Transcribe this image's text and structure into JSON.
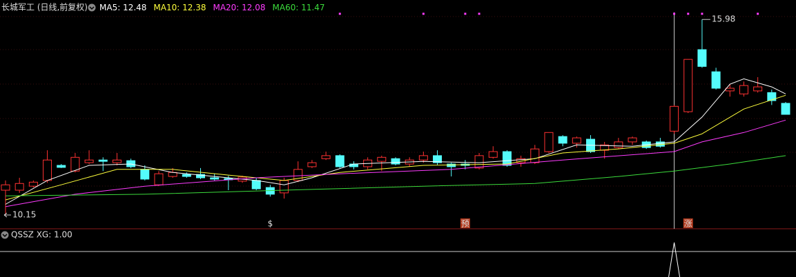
{
  "chart_data": {
    "type": "candlestick",
    "title": "长城军工 (日线,前复权)",
    "ylim": [
      9.74,
      16.56
    ],
    "up_color": "#ff3232",
    "down_color": "#54fcfc",
    "open": [
      10.89,
      10.89,
      11.01,
      11.18,
      11.63,
      11.46,
      11.71,
      11.79,
      11.71,
      11.77,
      11.51,
      11.05,
      11.3,
      11.36,
      11.36,
      11.26,
      11.24,
      11.16,
      11.18,
      10.97,
      10.81,
      11.18,
      11.59,
      11.83,
      11.92,
      11.67,
      11.59,
      11.75,
      11.83,
      11.67,
      11.79,
      11.92,
      11.67,
      11.67,
      11.55,
      11.87,
      12.04,
      11.71,
      11.71,
      12.04,
      12.49,
      12.29,
      12.41,
      12.08,
      12.16,
      12.33,
      12.33,
      12.33,
      12.65,
      13.23,
      15.08,
      14.42,
      13.85,
      13.76,
      13.85,
      13.8,
      13.48
    ],
    "high": [
      11.18,
      11.26,
      11.18,
      12.08,
      11.67,
      12.0,
      12.08,
      11.87,
      12.0,
      11.83,
      11.63,
      11.46,
      11.55,
      11.42,
      11.55,
      11.38,
      11.32,
      11.32,
      11.26,
      11.05,
      11.26,
      11.75,
      11.79,
      12.04,
      11.96,
      11.75,
      11.87,
      11.92,
      11.87,
      11.87,
      12.04,
      12.08,
      11.71,
      11.79,
      12.0,
      12.2,
      12.08,
      11.92,
      12.24,
      12.61,
      12.53,
      12.49,
      12.53,
      12.33,
      12.45,
      12.49,
      12.37,
      12.45,
      13.43,
      14.79,
      15.98,
      14.54,
      14.05,
      14.13,
      14.26,
      13.89,
      13.52
    ],
    "low": [
      10.15,
      10.81,
      10.97,
      11.11,
      11.55,
      11.42,
      11.67,
      11.46,
      11.63,
      11.55,
      11.18,
      11.01,
      11.26,
      11.26,
      11.22,
      11.18,
      10.89,
      11.11,
      10.89,
      10.7,
      10.64,
      11.13,
      11.55,
      11.79,
      11.55,
      11.51,
      11.51,
      11.46,
      11.63,
      11.59,
      11.71,
      11.63,
      11.3,
      11.51,
      11.51,
      11.83,
      11.59,
      11.59,
      11.67,
      12.0,
      12.2,
      12.16,
      12.0,
      11.83,
      12.12,
      12.24,
      12.12,
      12.16,
      12.57,
      13.19,
      14.54,
      13.89,
      13.68,
      13.68,
      13.8,
      13.43,
      13.15
    ],
    "close": [
      11.05,
      11.09,
      11.13,
      11.79,
      11.57,
      11.87,
      11.79,
      11.75,
      11.79,
      11.59,
      11.22,
      11.38,
      11.42,
      11.3,
      11.26,
      11.22,
      11.2,
      11.28,
      10.93,
      10.77,
      11.18,
      11.51,
      11.71,
      11.92,
      11.59,
      11.59,
      11.79,
      11.87,
      11.67,
      11.79,
      11.92,
      11.71,
      11.59,
      11.63,
      11.92,
      12.04,
      11.63,
      11.83,
      12.12,
      12.61,
      12.29,
      12.45,
      12.04,
      12.24,
      12.33,
      12.45,
      12.16,
      12.2,
      13.39,
      14.79,
      14.58,
      13.93,
      13.93,
      14.01,
      13.97,
      13.56,
      13.15
    ],
    "lines": [
      {
        "name": "MA5: 12.48",
        "color": "#ffffff",
        "x": [
          0,
          3,
          6,
          9,
          12,
          15,
          18,
          20,
          22,
          25,
          30,
          34,
          38,
          41,
          45,
          48,
          50,
          52,
          53,
          55,
          56
        ],
        "values": [
          10.47,
          11.18,
          11.63,
          11.67,
          11.42,
          11.3,
          11.18,
          11.05,
          11.26,
          11.67,
          11.75,
          11.71,
          11.83,
          12.24,
          12.2,
          12.33,
          13.07,
          14.05,
          14.21,
          13.97,
          13.76
        ]
      },
      {
        "name": "MA10: 12.38",
        "color": "#ffff3c",
        "x": [
          0,
          4,
          8,
          12,
          16,
          20,
          24,
          30,
          36,
          40,
          44,
          48,
          50,
          53,
          56
        ],
        "values": [
          10.6,
          11.05,
          11.51,
          11.51,
          11.34,
          11.18,
          11.42,
          11.63,
          11.67,
          12.0,
          12.12,
          12.29,
          12.57,
          13.31,
          13.72
        ]
      },
      {
        "name": "MA20: 12.08",
        "color": "#ff3cff",
        "x": [
          0,
          5,
          10,
          18,
          24,
          32,
          40,
          48,
          50,
          53,
          56
        ],
        "values": [
          10.4,
          10.77,
          11.01,
          11.26,
          11.38,
          11.51,
          11.79,
          12.04,
          12.33,
          12.61,
          12.98
        ]
      },
      {
        "name": "MA60: 11.47",
        "color": "#3cdc3c",
        "x": [
          0,
          10,
          20,
          30,
          38,
          44,
          48,
          52,
          56
        ],
        "values": [
          10.72,
          10.77,
          10.89,
          11.01,
          11.09,
          11.3,
          11.46,
          11.67,
          11.92
        ]
      }
    ],
    "top_dots": [
      24,
      30,
      33,
      34,
      48,
      49,
      50,
      54
    ],
    "signal_line": 48,
    "bottom_labels": [
      {
        "index": 19,
        "text": "$"
      },
      {
        "index": 33,
        "text": "预"
      },
      {
        "index": 49,
        "text": "涨"
      }
    ],
    "indicator": {
      "title": "QSSZ XG: 1.00",
      "spike_index": 48
    }
  }
}
